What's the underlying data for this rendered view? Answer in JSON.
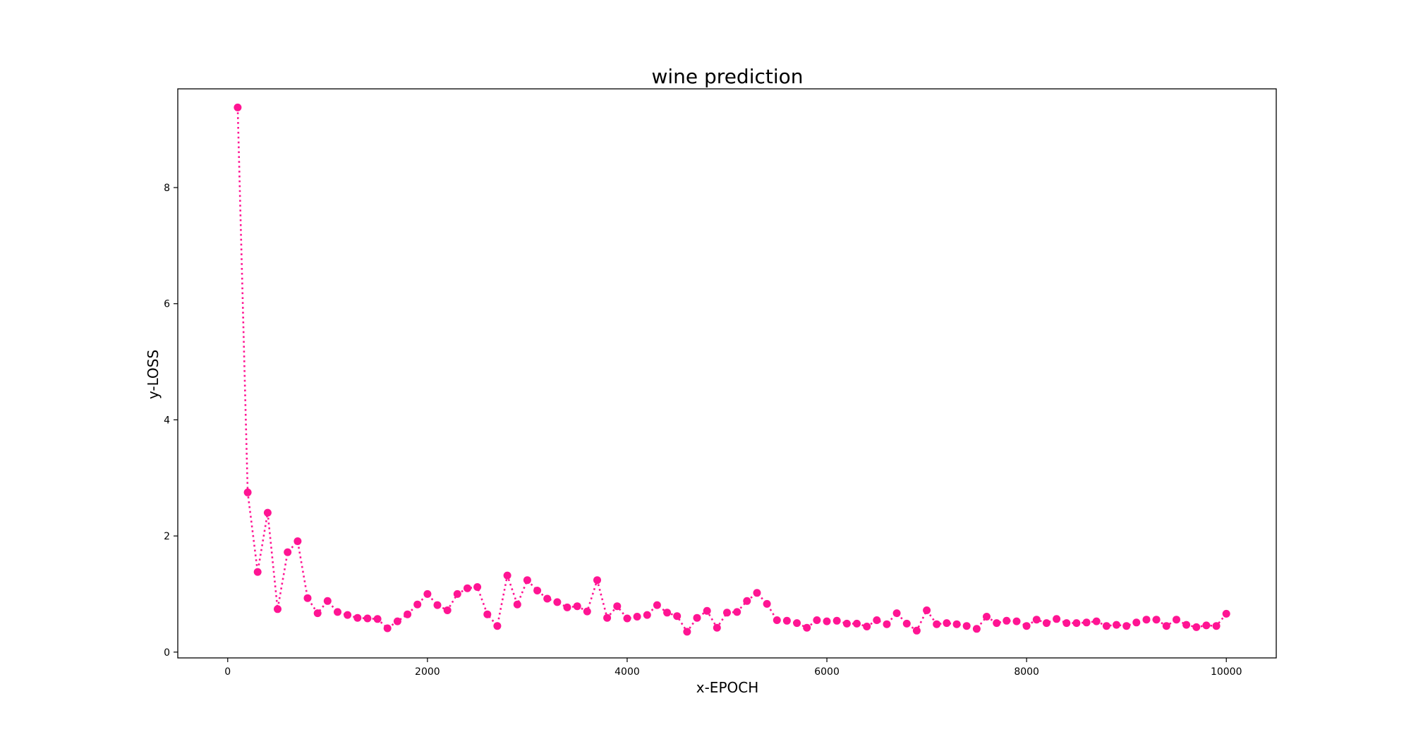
{
  "chart_data": {
    "type": "line",
    "title": "wine prediction",
    "xlabel": "x-EPOCH",
    "ylabel": "y-LOSS",
    "xlim": [
      -500,
      10500
    ],
    "ylim": [
      -0.1,
      9.7
    ],
    "xticks": [
      0,
      2000,
      4000,
      6000,
      8000,
      10000
    ],
    "yticks": [
      0,
      2,
      4,
      6,
      8
    ],
    "xtick_labels": [
      "0",
      "2000",
      "4000",
      "6000",
      "8000",
      "10000"
    ],
    "ytick_labels": [
      "0",
      "2",
      "4",
      "6",
      "8"
    ],
    "grid": false,
    "line_style": "dotted",
    "marker": "circle",
    "color": "#ff1493",
    "series": [
      {
        "x": [
          100,
          200,
          300,
          400,
          500,
          600,
          700,
          800,
          900,
          1000,
          1100,
          1200,
          1300,
          1400,
          1500,
          1600,
          1700,
          1800,
          1900,
          2000,
          2100,
          2200,
          2300,
          2400,
          2500,
          2600,
          2700,
          2800,
          2900,
          3000,
          3100,
          3200,
          3300,
          3400,
          3500,
          3600,
          3700,
          3800,
          3900,
          4000,
          4100,
          4200,
          4300,
          4400,
          4500,
          4600,
          4700,
          4800,
          4900,
          5000,
          5100,
          5200,
          5300,
          5400,
          5500,
          5600,
          5700,
          5800,
          5900,
          6000,
          6100,
          6200,
          6300,
          6400,
          6500,
          6600,
          6700,
          6800,
          6900,
          7000,
          7100,
          7200,
          7300,
          7400,
          7500,
          7600,
          7700,
          7800,
          7900,
          8000,
          8100,
          8200,
          8300,
          8400,
          8500,
          8600,
          8700,
          8800,
          8900,
          9000,
          9100,
          9200,
          9300,
          9400,
          9500,
          9600,
          9700,
          9800,
          9900,
          10000
        ],
        "values": [
          9.38,
          2.75,
          1.38,
          2.4,
          0.74,
          1.72,
          1.91,
          0.93,
          0.67,
          0.88,
          0.69,
          0.64,
          0.59,
          0.58,
          0.57,
          0.41,
          0.53,
          0.65,
          0.82,
          1.0,
          0.81,
          0.72,
          1.0,
          1.1,
          1.12,
          0.65,
          0.45,
          1.32,
          0.82,
          1.24,
          1.06,
          0.92,
          0.86,
          0.77,
          0.79,
          0.7,
          1.24,
          0.59,
          0.79,
          0.58,
          0.61,
          0.64,
          0.81,
          0.68,
          0.62,
          0.35,
          0.59,
          0.71,
          0.42,
          0.68,
          0.69,
          0.88,
          1.02,
          0.83,
          0.55,
          0.54,
          0.5,
          0.42,
          0.55,
          0.53,
          0.54,
          0.49,
          0.49,
          0.44,
          0.55,
          0.48,
          0.67,
          0.49,
          0.37,
          0.72,
          0.48,
          0.5,
          0.48,
          0.45,
          0.4,
          0.61,
          0.5,
          0.54,
          0.53,
          0.45,
          0.56,
          0.5,
          0.57,
          0.5,
          0.5,
          0.51,
          0.53,
          0.45,
          0.47,
          0.45,
          0.51,
          0.56,
          0.56,
          0.45,
          0.56,
          0.47,
          0.43,
          0.46,
          0.45,
          0.66
        ]
      }
    ]
  }
}
